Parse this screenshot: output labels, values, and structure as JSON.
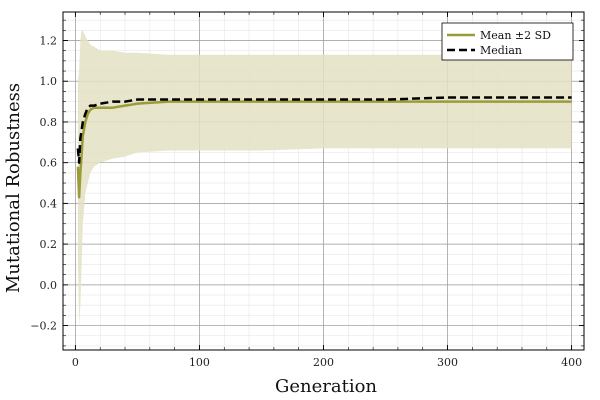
{
  "chart_data": {
    "type": "line",
    "title": "",
    "xlabel": "Generation",
    "ylabel": "Mutational Robustness",
    "xlim": [
      -10,
      410
    ],
    "ylim": [
      -0.32,
      1.34
    ],
    "x_ticks": [
      0,
      100,
      200,
      300,
      400
    ],
    "y_ticks": [
      -0.2,
      0.0,
      0.2,
      0.4,
      0.6,
      0.8,
      1.0,
      1.2
    ],
    "x_tick_labels": [
      "0",
      "100",
      "200",
      "300",
      "400"
    ],
    "y_tick_labels": [
      "−0.2",
      "0.0",
      "0.2",
      "0.4",
      "0.6",
      "0.8",
      "1.0",
      "1.2"
    ],
    "grid": true,
    "minor_grid": true,
    "legend_position": "top-right",
    "series": [
      {
        "name": "Mean ±2 SD",
        "color": "#9b9b3a",
        "style": "solid",
        "band_color": "#e3e0c2",
        "x": [
          2,
          3,
          4,
          5,
          6,
          8,
          10,
          12,
          15,
          20,
          30,
          40,
          50,
          75,
          100,
          150,
          200,
          250,
          300,
          350,
          400
        ],
        "values": [
          0.58,
          0.43,
          0.55,
          0.64,
          0.73,
          0.8,
          0.84,
          0.86,
          0.87,
          0.87,
          0.87,
          0.88,
          0.89,
          0.9,
          0.9,
          0.9,
          0.9,
          0.9,
          0.9,
          0.9,
          0.9
        ],
        "lower": [
          0.15,
          -0.2,
          -0.1,
          0.1,
          0.3,
          0.45,
          0.5,
          0.55,
          0.58,
          0.6,
          0.62,
          0.63,
          0.65,
          0.66,
          0.66,
          0.66,
          0.67,
          0.67,
          0.67,
          0.67,
          0.67
        ],
        "upper": [
          1.0,
          1.05,
          1.2,
          1.25,
          1.25,
          1.22,
          1.2,
          1.18,
          1.17,
          1.15,
          1.15,
          1.14,
          1.14,
          1.13,
          1.13,
          1.13,
          1.13,
          1.13,
          1.13,
          1.13,
          1.13
        ]
      },
      {
        "name": "Median",
        "color": "#000000",
        "style": "dashed",
        "x": [
          2,
          3,
          4,
          5,
          6,
          8,
          10,
          12,
          15,
          20,
          30,
          40,
          50,
          75,
          100,
          150,
          200,
          250,
          300,
          350,
          400
        ],
        "values": [
          0.67,
          0.6,
          0.72,
          0.76,
          0.8,
          0.84,
          0.87,
          0.88,
          0.88,
          0.89,
          0.9,
          0.9,
          0.91,
          0.91,
          0.91,
          0.91,
          0.91,
          0.91,
          0.92,
          0.92,
          0.92
        ]
      }
    ]
  }
}
